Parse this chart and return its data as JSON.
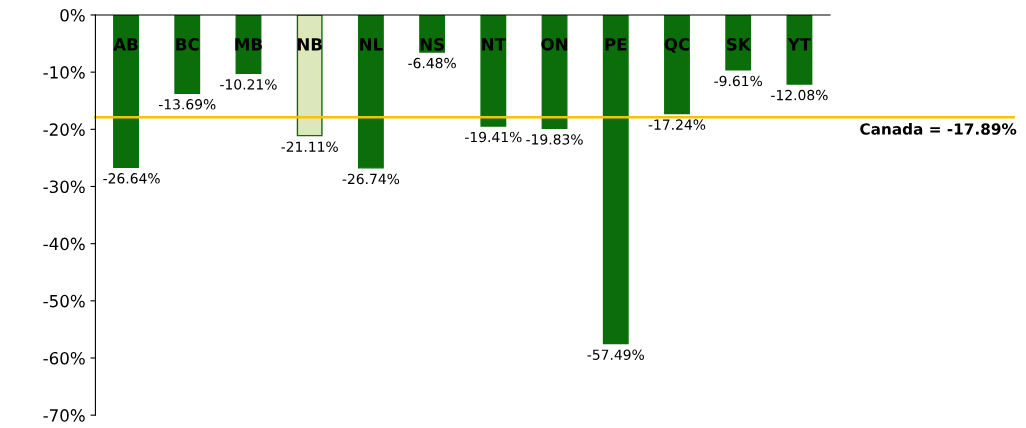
{
  "chart_data": {
    "type": "bar",
    "categories": [
      "AB",
      "BC",
      "MB",
      "NB",
      "NL",
      "NS",
      "NT",
      "ON",
      "PE",
      "QC",
      "SK",
      "YT"
    ],
    "values": [
      -26.64,
      -13.69,
      -10.21,
      -21.11,
      -26.74,
      -6.48,
      -19.41,
      -19.83,
      -57.49,
      -17.24,
      -9.61,
      -12.08
    ],
    "colors": [
      "#0b6e0b",
      "#0b6e0b",
      "#0b6e0b",
      "#dce8bc",
      "#0b6e0b",
      "#0b6e0b",
      "#0b6e0b",
      "#0b6e0b",
      "#0b6e0b",
      "#0b6e0b",
      "#0b6e0b",
      "#0b6e0b"
    ],
    "value_labels": [
      "-26.64%",
      "-13.69%",
      "-10.21%",
      "-21.11%",
      "-26.74%",
      "-6.48%",
      "-19.41%",
      "-19.83%",
      "-57.49%",
      "-17.24%",
      "-9.61%",
      "-12.08%"
    ],
    "ylim": [
      -70,
      0
    ],
    "yticks": [
      {
        "value": -70,
        "label": "-70%"
      },
      {
        "value": -60,
        "label": "-60%"
      },
      {
        "value": -50,
        "label": "-50%"
      },
      {
        "value": -40,
        "label": "-40%"
      },
      {
        "value": -30,
        "label": "-30%"
      },
      {
        "value": -20,
        "label": "-20%"
      },
      {
        "value": -10,
        "label": "-10%"
      },
      {
        "value": 0,
        "label": "0%"
      }
    ],
    "ref_lines": [
      {
        "axis": "y",
        "value": -17.89,
        "label": "Canada = -17.89%",
        "color": "#f5c400"
      }
    ],
    "grid": false,
    "legend": false
  }
}
